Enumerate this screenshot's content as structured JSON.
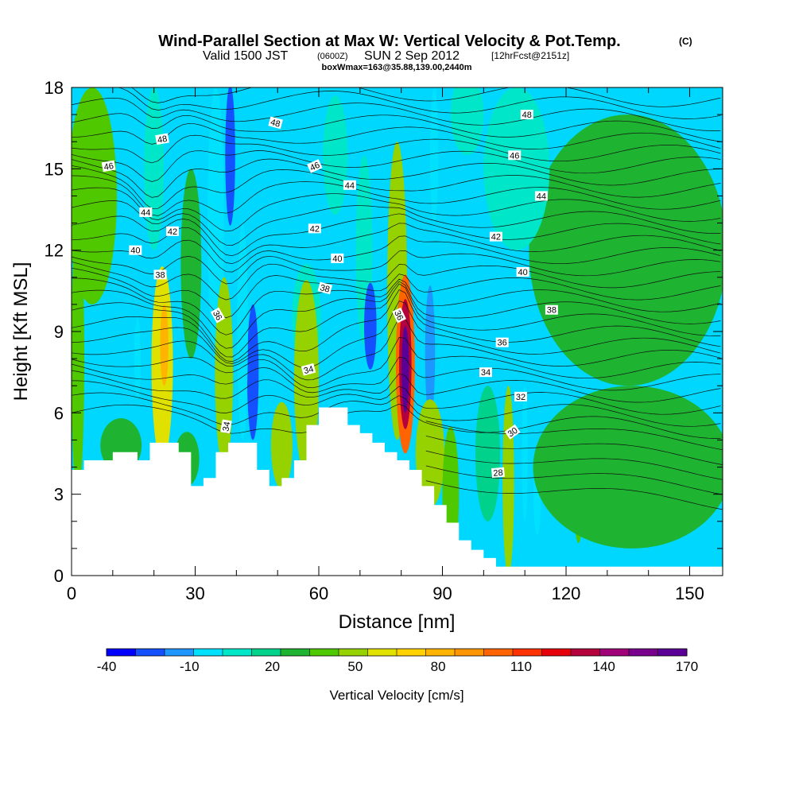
{
  "chart_data": {
    "type": "heatmap",
    "title": "Wind-Parallel Section at Max W: Vertical Velocity & Pot.Temp.",
    "title_mark": "(C)",
    "subtitle_a": "Valid 1500 JST",
    "subtitle_b": "(0600Z)",
    "subtitle_c": "SUN 2 Sep 2012",
    "subtitle_d": "[12hrFcst@2151z]",
    "subtitle2": "boxWmax=163@35.88,139.00,2440m",
    "xlabel": "Distance [nm]",
    "ylabel": "Height [Kft MSL]",
    "xlim": [
      0,
      158
    ],
    "ylim": [
      0,
      18
    ],
    "x_ticks": [
      0,
      30,
      60,
      90,
      120,
      150
    ],
    "y_ticks": [
      0,
      3,
      6,
      9,
      12,
      15,
      18
    ],
    "colorbar": {
      "label": "Vertical Velocity [cm/s]",
      "ticks": [
        "-40",
        "-10",
        "20",
        "50",
        "80",
        "110",
        "140",
        "170"
      ],
      "colors": [
        "#0000ff",
        "#1450ff",
        "#1e96ff",
        "#00e1ff",
        "#00e6c8",
        "#00d28c",
        "#1eb432",
        "#50c800",
        "#96d200",
        "#e1e100",
        "#ffd200",
        "#ffb400",
        "#ff9600",
        "#ff6400",
        "#ff3200",
        "#e6000a",
        "#b4003c",
        "#a00078",
        "#78008c",
        "#5a0096"
      ]
    },
    "background_color": "#00d7ff",
    "terrain": [
      [
        0,
        3.9
      ],
      [
        3,
        3.9
      ],
      [
        3,
        4.25
      ],
      [
        10,
        4.25
      ],
      [
        10,
        4.55
      ],
      [
        16,
        4.55
      ],
      [
        16,
        4.25
      ],
      [
        19,
        4.25
      ],
      [
        19,
        4.9
      ],
      [
        26,
        4.9
      ],
      [
        26,
        4.55
      ],
      [
        29,
        4.55
      ],
      [
        29,
        3.3
      ],
      [
        32,
        3.3
      ],
      [
        32,
        3.6
      ],
      [
        35,
        3.6
      ],
      [
        35,
        4.55
      ],
      [
        38,
        4.55
      ],
      [
        38,
        4.9
      ],
      [
        45,
        4.9
      ],
      [
        45,
        3.9
      ],
      [
        48,
        3.9
      ],
      [
        48,
        3.3
      ],
      [
        51,
        3.3
      ],
      [
        51,
        3.6
      ],
      [
        54,
        3.6
      ],
      [
        54,
        4.25
      ],
      [
        57,
        4.25
      ],
      [
        57,
        5.55
      ],
      [
        60,
        5.55
      ],
      [
        60,
        6.2
      ],
      [
        67,
        6.2
      ],
      [
        67,
        5.55
      ],
      [
        70,
        5.55
      ],
      [
        70,
        5.25
      ],
      [
        73,
        5.25
      ],
      [
        73,
        4.9
      ],
      [
        76,
        4.9
      ],
      [
        76,
        4.55
      ],
      [
        79,
        4.55
      ],
      [
        79,
        4.25
      ],
      [
        82,
        4.25
      ],
      [
        82,
        3.9
      ],
      [
        85,
        3.9
      ],
      [
        85,
        3.3
      ],
      [
        88,
        3.3
      ],
      [
        88,
        2.6
      ],
      [
        91,
        2.6
      ],
      [
        91,
        1.95
      ],
      [
        94,
        1.95
      ],
      [
        94,
        1.3
      ],
      [
        97,
        1.3
      ],
      [
        97,
        0.95
      ],
      [
        100,
        0.95
      ],
      [
        100,
        0.65
      ],
      [
        103,
        0.65
      ],
      [
        103,
        0.33
      ],
      [
        158,
        0.33
      ]
    ],
    "w_features": [
      {
        "x": 35,
        "y": 13,
        "rx": 2.0,
        "ry": 5.0,
        "value": -12
      },
      {
        "x": 38.5,
        "y": 15.5,
        "rx": 1.2,
        "ry": 2.6,
        "value": -40
      },
      {
        "x": 20,
        "y": 15,
        "rx": 2.4,
        "ry": 3.0,
        "value": -10
      },
      {
        "x": 29,
        "y": 11.5,
        "rx": 2.5,
        "ry": 3.5,
        "value": 16
      },
      {
        "x": 64,
        "y": 15.5,
        "rx": 3.0,
        "ry": 2.2,
        "value": -5
      },
      {
        "x": 57,
        "y": 9.5,
        "rx": 3.5,
        "ry": 2.0,
        "value": -10
      },
      {
        "x": 71,
        "y": 12,
        "rx": 2.0,
        "ry": 3.5,
        "value": -8
      },
      {
        "x": 88,
        "y": 15.5,
        "rx": 1.0,
        "ry": 2.5,
        "value": -15
      },
      {
        "x": 44,
        "y": 7.5,
        "rx": 1.4,
        "ry": 2.5,
        "value": -35
      },
      {
        "x": 41.5,
        "y": 9,
        "rx": 1.3,
        "ry": 4.0,
        "value": -18
      },
      {
        "x": 57,
        "y": 7.3,
        "rx": 3.0,
        "ry": 3.6,
        "value": 38
      },
      {
        "x": 51,
        "y": 4.8,
        "rx": 2.6,
        "ry": 1.6,
        "value": 33
      },
      {
        "x": 37,
        "y": 7.5,
        "rx": 2.2,
        "ry": 3.5,
        "value": 38
      },
      {
        "x": 22,
        "y": 7.8,
        "rx": 2.6,
        "ry": 3.6,
        "value": 40
      },
      {
        "x": 22.5,
        "y": 8.5,
        "rx": 1.0,
        "ry": 1.5,
        "value": 60
      },
      {
        "x": 16,
        "y": 8,
        "rx": 0.8,
        "ry": 1.5,
        "value": -12
      },
      {
        "x": 72.5,
        "y": 9.2,
        "rx": 1.5,
        "ry": 1.6,
        "value": -38
      },
      {
        "x": 79,
        "y": 10.5,
        "rx": 2.4,
        "ry": 5.5,
        "value": 30
      },
      {
        "x": 81,
        "y": 7.8,
        "rx": 2.3,
        "ry": 3.3,
        "value": 80
      },
      {
        "x": 81,
        "y": 7.8,
        "rx": 1.5,
        "ry": 2.4,
        "value": 110
      },
      {
        "x": 81,
        "y": 7.6,
        "rx": 0.9,
        "ry": 1.6,
        "value": 140
      },
      {
        "x": 87,
        "y": 8.2,
        "rx": 1.2,
        "ry": 2.5,
        "value": -30
      },
      {
        "x": 87,
        "y": 4.5,
        "rx": 3.5,
        "ry": 2.0,
        "value": 30
      },
      {
        "x": 92,
        "y": 3,
        "rx": 2.0,
        "ry": 2.5,
        "value": 25
      },
      {
        "x": 101,
        "y": 4.5,
        "rx": 3.0,
        "ry": 2.5,
        "value": 5
      },
      {
        "x": 106,
        "y": 3.5,
        "rx": 1.4,
        "ry": 3.5,
        "value": 30
      },
      {
        "x": 110,
        "y": 4.5,
        "rx": 0.7,
        "ry": 2.5,
        "value": -15
      },
      {
        "x": 113,
        "y": 3,
        "rx": 0.9,
        "ry": 1.5,
        "value": -12
      },
      {
        "x": 123,
        "y": 2.5,
        "rx": 1.0,
        "ry": 1.3,
        "value": 22
      },
      {
        "x": 5,
        "y": 14,
        "rx": 6.0,
        "ry": 4.0,
        "value": 20
      },
      {
        "x": 1.5,
        "y": 8,
        "rx": 1.6,
        "ry": 5.0,
        "value": 20
      },
      {
        "x": 135,
        "y": 12,
        "rx": 24.0,
        "ry": 5.0,
        "value": 12
      },
      {
        "x": 136,
        "y": 4,
        "rx": 24.0,
        "ry": 3.0,
        "value": 18
      },
      {
        "x": 108,
        "y": 15,
        "rx": 8.0,
        "ry": 3.0,
        "value": -5
      },
      {
        "x": 96,
        "y": 17,
        "rx": 4.0,
        "ry": 1.5,
        "value": -6
      },
      {
        "x": 28,
        "y": 4.3,
        "rx": 3.0,
        "ry": 1.0,
        "value": 16
      },
      {
        "x": 12,
        "y": 4.8,
        "rx": 5.0,
        "ry": 1.0,
        "value": 15
      }
    ],
    "isentrope_count": 30,
    "contour_labels": [
      {
        "text": "48",
        "x": 22,
        "y": 16.1,
        "angle": -10
      },
      {
        "text": "46",
        "x": 9,
        "y": 15.1,
        "angle": -10
      },
      {
        "text": "44",
        "x": 18,
        "y": 13.4,
        "angle": 0
      },
      {
        "text": "42",
        "x": 24.5,
        "y": 12.7,
        "angle": 0
      },
      {
        "text": "40",
        "x": 15.5,
        "y": 12.0,
        "angle": 0
      },
      {
        "text": "38",
        "x": 21.5,
        "y": 11.1,
        "angle": 0
      },
      {
        "text": "36",
        "x": 35.5,
        "y": 9.6,
        "angle": 60
      },
      {
        "text": "34",
        "x": 37.5,
        "y": 5.5,
        "angle": -80
      },
      {
        "text": "48",
        "x": 49.5,
        "y": 16.7,
        "angle": 15
      },
      {
        "text": "46",
        "x": 59,
        "y": 15.1,
        "angle": -25
      },
      {
        "text": "44",
        "x": 67.5,
        "y": 14.4,
        "angle": 0
      },
      {
        "text": "42",
        "x": 59,
        "y": 12.8,
        "angle": 0
      },
      {
        "text": "40",
        "x": 64.5,
        "y": 11.7,
        "angle": 0
      },
      {
        "text": "38",
        "x": 61.5,
        "y": 10.6,
        "angle": 15
      },
      {
        "text": "34",
        "x": 57.5,
        "y": 7.6,
        "angle": -15
      },
      {
        "text": "36",
        "x": 79.5,
        "y": 9.6,
        "angle": 65
      },
      {
        "text": "48",
        "x": 110.5,
        "y": 17.0,
        "angle": 0
      },
      {
        "text": "46",
        "x": 107.5,
        "y": 15.5,
        "angle": 0
      },
      {
        "text": "44",
        "x": 114,
        "y": 14.0,
        "angle": 0
      },
      {
        "text": "42",
        "x": 103,
        "y": 12.5,
        "angle": 0
      },
      {
        "text": "40",
        "x": 109.5,
        "y": 11.2,
        "angle": 0
      },
      {
        "text": "38",
        "x": 116.5,
        "y": 9.8,
        "angle": 0
      },
      {
        "text": "36",
        "x": 104.5,
        "y": 8.6,
        "angle": 0
      },
      {
        "text": "34",
        "x": 100.5,
        "y": 7.5,
        "angle": 0
      },
      {
        "text": "32",
        "x": 109,
        "y": 6.6,
        "angle": 0
      },
      {
        "text": "30",
        "x": 107,
        "y": 5.3,
        "angle": -35
      },
      {
        "text": "28",
        "x": 103.5,
        "y": 3.8,
        "angle": -5
      }
    ]
  }
}
